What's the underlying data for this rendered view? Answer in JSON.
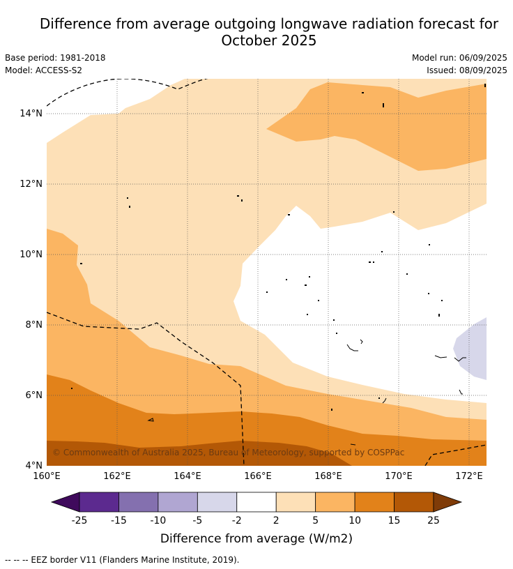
{
  "title_line1": "Difference from average outgoing longwave radiation forecast for",
  "title_line2": "October 2025",
  "meta": {
    "base_period_label": "Base period:",
    "base_period": "1981-2018",
    "model_label": "Model:",
    "model": "ACCESS-S2",
    "model_run_label": "Model run:",
    "model_run": "06/09/2025",
    "issued_label": "Issued:",
    "issued": "08/09/2025"
  },
  "map": {
    "lat_ticks": [
      "4°N",
      "6°N",
      "8°N",
      "10°N",
      "12°N",
      "14°N"
    ],
    "lon_ticks": [
      "160°E",
      "162°E",
      "164°E",
      "166°E",
      "168°E",
      "170°E",
      "172°E"
    ],
    "copyright": "© Commonwealth of Australia 2025, Bureau of Meteorology, supported by COSPPac"
  },
  "colorbar": {
    "ticks": [
      "-25",
      "-15",
      "-10",
      "-5",
      "-2",
      "2",
      "5",
      "10",
      "15",
      "25"
    ],
    "colors": [
      "#3f0a5c",
      "#5c2a8f",
      "#8470af",
      "#b0a6d2",
      "#d7d7ea",
      "#ffffff",
      "#fde0b7",
      "#fbb562",
      "#e2821a",
      "#b35806",
      "#7f3b08"
    ],
    "label": "Difference from average (W/m2)"
  },
  "footnote": "--  --  -- EEZ border V11 (Flanders Marine Institute, 2019)."
}
